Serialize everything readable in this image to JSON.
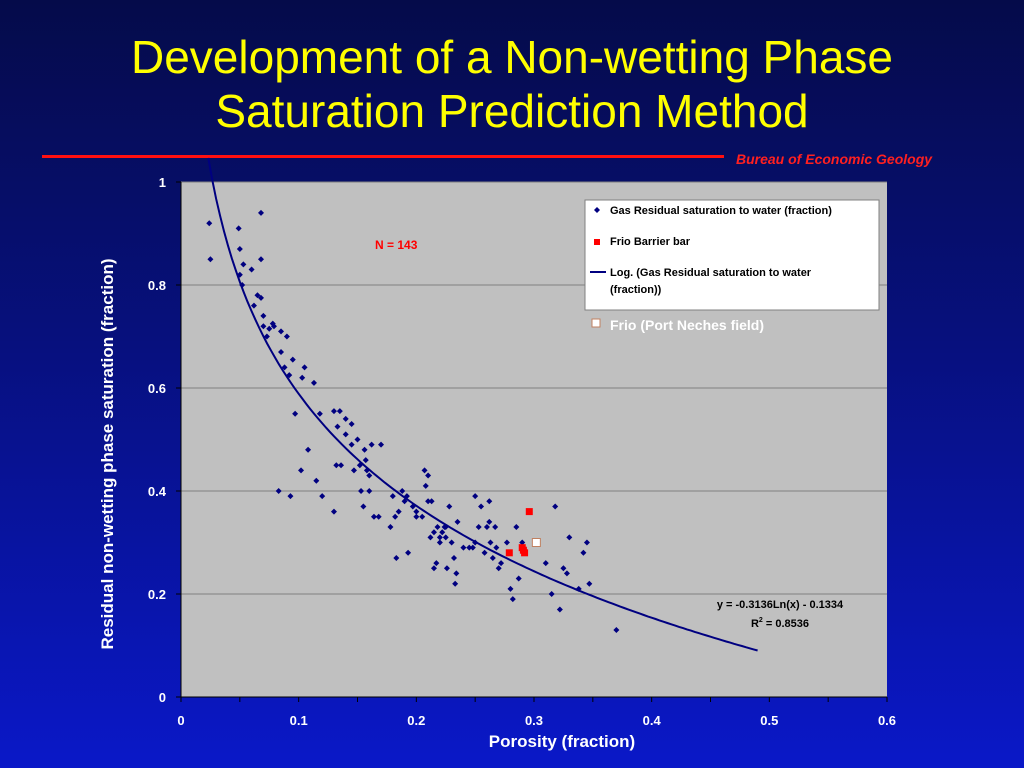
{
  "slide": {
    "title_line1": "Development of a Non-wetting Phase",
    "title_line2": "Saturation Prediction Method",
    "org": "Bureau of Economic Geology"
  },
  "colors": {
    "title": "#ffff00",
    "rule": "#ff1010",
    "plot_bg": "#c0c0c0",
    "points": "#000080",
    "frio_barrier": "#ff0000",
    "fit_line": "#000080"
  },
  "chart_data": {
    "type": "scatter",
    "title": "",
    "xlabel": "Porosity (fraction)",
    "ylabel": "Residual non-wetting phase saturation (fraction)",
    "xlim": [
      0,
      0.6
    ],
    "ylim": [
      0,
      1
    ],
    "x_ticks": [
      "0",
      "0.1",
      "0.2",
      "0.3",
      "0.4",
      "0.5",
      "0.6"
    ],
    "y_ticks": [
      "0",
      "0.2",
      "0.4",
      "0.6",
      "0.8",
      "1"
    ],
    "grid": "horizontal",
    "legend_position": "top-right",
    "annotation_n": "N = 143",
    "equation": "y = -0.3136Ln(x) - 0.1334",
    "r2_label": "R",
    "r2_sup": "2",
    "r2_value": " = 0.8536",
    "series": [
      {
        "name": "Gas Residual saturation to water (fraction)",
        "marker": "diamond",
        "color": "#000080",
        "points": [
          [
            0.024,
            0.92
          ],
          [
            0.025,
            0.85
          ],
          [
            0.049,
            0.91
          ],
          [
            0.05,
            0.87
          ],
          [
            0.05,
            0.82
          ],
          [
            0.052,
            0.8
          ],
          [
            0.053,
            0.84
          ],
          [
            0.06,
            0.83
          ],
          [
            0.062,
            0.76
          ],
          [
            0.065,
            0.78
          ],
          [
            0.068,
            0.94
          ],
          [
            0.068,
            0.85
          ],
          [
            0.068,
            0.775
          ],
          [
            0.07,
            0.72
          ],
          [
            0.07,
            0.74
          ],
          [
            0.073,
            0.7
          ],
          [
            0.075,
            0.715
          ],
          [
            0.078,
            0.725
          ],
          [
            0.079,
            0.72
          ],
          [
            0.085,
            0.71
          ],
          [
            0.085,
            0.67
          ],
          [
            0.088,
            0.64
          ],
          [
            0.09,
            0.7
          ],
          [
            0.092,
            0.625
          ],
          [
            0.095,
            0.655
          ],
          [
            0.083,
            0.4
          ],
          [
            0.093,
            0.39
          ],
          [
            0.097,
            0.55
          ],
          [
            0.102,
            0.44
          ],
          [
            0.103,
            0.62
          ],
          [
            0.105,
            0.64
          ],
          [
            0.108,
            0.48
          ],
          [
            0.113,
            0.61
          ],
          [
            0.115,
            0.42
          ],
          [
            0.118,
            0.55
          ],
          [
            0.12,
            0.39
          ],
          [
            0.13,
            0.555
          ],
          [
            0.13,
            0.36
          ],
          [
            0.132,
            0.45
          ],
          [
            0.133,
            0.525
          ],
          [
            0.135,
            0.555
          ],
          [
            0.136,
            0.45
          ],
          [
            0.14,
            0.51
          ],
          [
            0.14,
            0.54
          ],
          [
            0.145,
            0.53
          ],
          [
            0.145,
            0.49
          ],
          [
            0.147,
            0.44
          ],
          [
            0.15,
            0.5
          ],
          [
            0.152,
            0.45
          ],
          [
            0.153,
            0.4
          ],
          [
            0.155,
            0.37
          ],
          [
            0.156,
            0.48
          ],
          [
            0.157,
            0.46
          ],
          [
            0.158,
            0.44
          ],
          [
            0.16,
            0.4
          ],
          [
            0.16,
            0.43
          ],
          [
            0.162,
            0.49
          ],
          [
            0.164,
            0.35
          ],
          [
            0.168,
            0.35
          ],
          [
            0.17,
            0.49
          ],
          [
            0.178,
            0.33
          ],
          [
            0.18,
            0.39
          ],
          [
            0.182,
            0.35
          ],
          [
            0.183,
            0.27
          ],
          [
            0.185,
            0.36
          ],
          [
            0.188,
            0.4
          ],
          [
            0.19,
            0.38
          ],
          [
            0.192,
            0.39
          ],
          [
            0.193,
            0.28
          ],
          [
            0.197,
            0.37
          ],
          [
            0.2,
            0.36
          ],
          [
            0.2,
            0.35
          ],
          [
            0.205,
            0.35
          ],
          [
            0.207,
            0.44
          ],
          [
            0.208,
            0.41
          ],
          [
            0.21,
            0.43
          ],
          [
            0.21,
            0.38
          ],
          [
            0.212,
            0.31
          ],
          [
            0.213,
            0.38
          ],
          [
            0.215,
            0.32
          ],
          [
            0.215,
            0.25
          ],
          [
            0.217,
            0.26
          ],
          [
            0.218,
            0.33
          ],
          [
            0.22,
            0.31
          ],
          [
            0.22,
            0.3
          ],
          [
            0.222,
            0.32
          ],
          [
            0.224,
            0.33
          ],
          [
            0.225,
            0.33
          ],
          [
            0.225,
            0.31
          ],
          [
            0.226,
            0.25
          ],
          [
            0.228,
            0.37
          ],
          [
            0.23,
            0.3
          ],
          [
            0.232,
            0.27
          ],
          [
            0.233,
            0.22
          ],
          [
            0.234,
            0.24
          ],
          [
            0.235,
            0.34
          ],
          [
            0.24,
            0.29
          ],
          [
            0.245,
            0.29
          ],
          [
            0.248,
            0.29
          ],
          [
            0.25,
            0.39
          ],
          [
            0.25,
            0.3
          ],
          [
            0.253,
            0.33
          ],
          [
            0.255,
            0.37
          ],
          [
            0.258,
            0.28
          ],
          [
            0.26,
            0.33
          ],
          [
            0.262,
            0.38
          ],
          [
            0.262,
            0.34
          ],
          [
            0.263,
            0.3
          ],
          [
            0.265,
            0.27
          ],
          [
            0.267,
            0.33
          ],
          [
            0.268,
            0.29
          ],
          [
            0.27,
            0.25
          ],
          [
            0.272,
            0.26
          ],
          [
            0.277,
            0.3
          ],
          [
            0.28,
            0.21
          ],
          [
            0.282,
            0.19
          ],
          [
            0.285,
            0.33
          ],
          [
            0.287,
            0.23
          ],
          [
            0.29,
            0.3
          ],
          [
            0.31,
            0.26
          ],
          [
            0.315,
            0.2
          ],
          [
            0.318,
            0.37
          ],
          [
            0.322,
            0.17
          ],
          [
            0.325,
            0.25
          ],
          [
            0.328,
            0.24
          ],
          [
            0.33,
            0.31
          ],
          [
            0.338,
            0.21
          ],
          [
            0.342,
            0.28
          ],
          [
            0.345,
            0.3
          ],
          [
            0.347,
            0.22
          ],
          [
            0.37,
            0.13
          ]
        ]
      },
      {
        "name": "Frio Barrier bar",
        "marker": "square",
        "color": "#ff0000",
        "points": [
          [
            0.279,
            0.28
          ],
          [
            0.29,
            0.29
          ],
          [
            0.291,
            0.285
          ],
          [
            0.292,
            0.28
          ],
          [
            0.296,
            0.36
          ]
        ]
      },
      {
        "name": "Log. (Gas Residual saturation to water (fraction))",
        "name_line1": "Log. (Gas Residual saturation to water",
        "name_line2": "(fraction))",
        "type": "line",
        "color": "#000080",
        "x_from": 0.0232,
        "x_to": 0.49
      },
      {
        "name": "Frio (Port Neches field)",
        "marker": "open-square",
        "color": "#ffffff",
        "points": [
          [
            0.302,
            0.3
          ]
        ]
      }
    ]
  }
}
